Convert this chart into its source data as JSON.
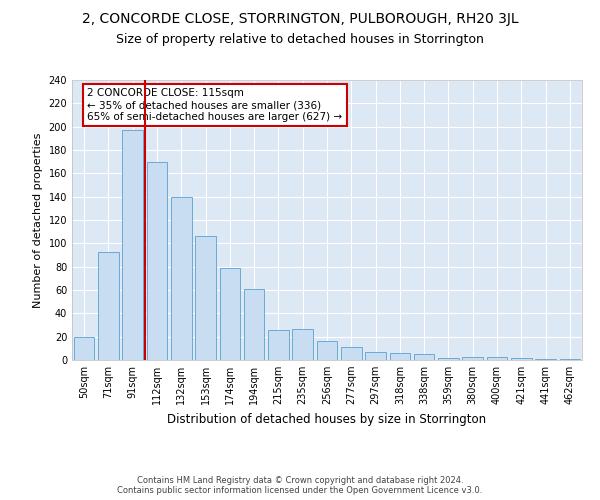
{
  "title": "2, CONCORDE CLOSE, STORRINGTON, PULBOROUGH, RH20 3JL",
  "subtitle": "Size of property relative to detached houses in Storrington",
  "xlabel": "Distribution of detached houses by size in Storrington",
  "ylabel": "Number of detached properties",
  "categories": [
    "50sqm",
    "71sqm",
    "91sqm",
    "112sqm",
    "132sqm",
    "153sqm",
    "174sqm",
    "194sqm",
    "215sqm",
    "235sqm",
    "256sqm",
    "277sqm",
    "297sqm",
    "318sqm",
    "338sqm",
    "359sqm",
    "380sqm",
    "400sqm",
    "421sqm",
    "441sqm",
    "462sqm"
  ],
  "values": [
    20,
    93,
    197,
    170,
    140,
    106,
    79,
    61,
    26,
    27,
    16,
    11,
    7,
    6,
    5,
    2,
    3,
    3,
    2,
    1,
    1
  ],
  "bar_color": "#c9ddf2",
  "bar_edge_color": "#6aaad4",
  "vline_color": "#cc0000",
  "annotation_text": "2 CONCORDE CLOSE: 115sqm\n← 35% of detached houses are smaller (336)\n65% of semi-detached houses are larger (627) →",
  "annotation_box_color": "#ffffff",
  "annotation_box_edge": "#cc0000",
  "footer_line1": "Contains HM Land Registry data © Crown copyright and database right 2024.",
  "footer_line2": "Contains public sector information licensed under the Open Government Licence v3.0.",
  "ylim": [
    0,
    240
  ],
  "yticks": [
    0,
    20,
    40,
    60,
    80,
    100,
    120,
    140,
    160,
    180,
    200,
    220,
    240
  ],
  "background_color": "#dde8f5",
  "grid_color": "#ffffff",
  "title_fontsize": 10,
  "subtitle_fontsize": 9,
  "tick_fontsize": 7,
  "ylabel_fontsize": 8,
  "xlabel_fontsize": 8.5,
  "annotation_fontsize": 7.5,
  "footer_fontsize": 6
}
